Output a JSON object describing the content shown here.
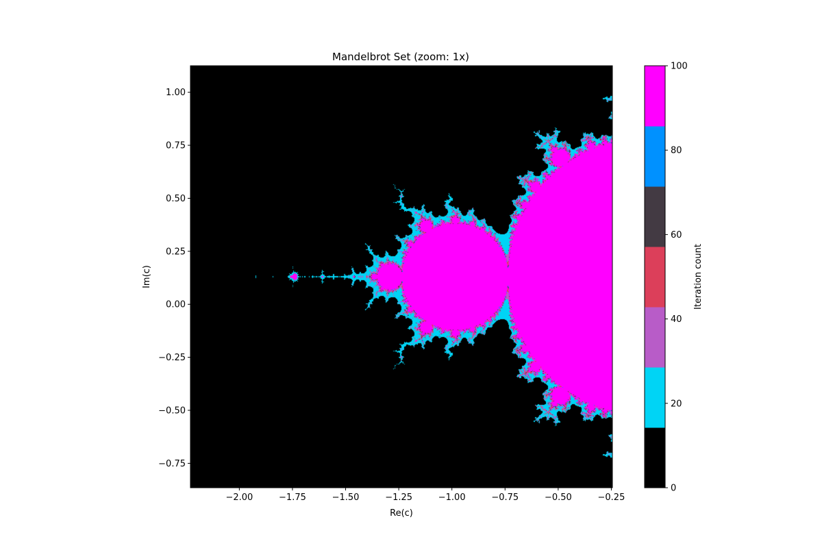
{
  "chart_data": {
    "type": "heatmap",
    "title": "Mandelbrot Set (zoom: 1x)",
    "xlabel": "Re(c)",
    "ylabel": "Im(c)",
    "colorbar_label": "Iteration count",
    "xlim": [
      -2.23,
      -0.245
    ],
    "ylim": [
      -0.865,
      1.125
    ],
    "max_iterations": 100,
    "xticks": [
      {
        "value": -2.0,
        "label": "−2.00"
      },
      {
        "value": -1.75,
        "label": "−1.75"
      },
      {
        "value": -1.5,
        "label": "−1.50"
      },
      {
        "value": -1.25,
        "label": "−1.25"
      },
      {
        "value": -1.0,
        "label": "−1.00"
      },
      {
        "value": -0.75,
        "label": "−0.75"
      },
      {
        "value": -0.5,
        "label": "−0.50"
      },
      {
        "value": -0.25,
        "label": "−0.25"
      }
    ],
    "yticks": [
      {
        "value": 1.0,
        "label": "1.00"
      },
      {
        "value": 0.75,
        "label": "0.75"
      },
      {
        "value": 0.5,
        "label": "0.50"
      },
      {
        "value": 0.25,
        "label": "0.25"
      },
      {
        "value": 0.0,
        "label": "0.00"
      },
      {
        "value": -0.25,
        "label": "−0.25"
      },
      {
        "value": -0.5,
        "label": "−0.50"
      },
      {
        "value": -0.75,
        "label": "−0.75"
      }
    ],
    "colorbar_range": [
      0,
      100
    ],
    "colorbar_ticks": [
      {
        "value": 0,
        "label": "0"
      },
      {
        "value": 20,
        "label": "20"
      },
      {
        "value": 40,
        "label": "40"
      },
      {
        "value": 60,
        "label": "60"
      },
      {
        "value": 80,
        "label": "80"
      },
      {
        "value": 100,
        "label": "100"
      }
    ],
    "colormap": [
      "#000000",
      "#00d4f5",
      "#b85cc8",
      "#dc3f5a",
      "#433a43",
      "#0091ff",
      "#ff00ff"
    ],
    "grid": false
  }
}
